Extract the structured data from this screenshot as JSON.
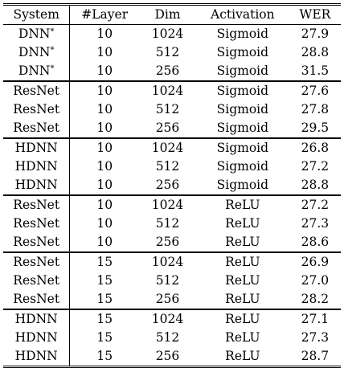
{
  "table": {
    "headers": [
      "System",
      "#Layer",
      "Dim",
      "Activation",
      "WER"
    ],
    "groups": [
      {
        "rows": [
          {
            "system": "DNN",
            "sup": "*",
            "layer": "10",
            "dim": "1024",
            "activation": "Sigmoid",
            "wer": "27.9"
          },
          {
            "system": "DNN",
            "sup": "*",
            "layer": "10",
            "dim": "512",
            "activation": "Sigmoid",
            "wer": "28.8"
          },
          {
            "system": "DNN",
            "sup": "*",
            "layer": "10",
            "dim": "256",
            "activation": "Sigmoid",
            "wer": "31.5"
          }
        ]
      },
      {
        "rows": [
          {
            "system": "ResNet",
            "sup": "",
            "layer": "10",
            "dim": "1024",
            "activation": "Sigmoid",
            "wer": "27.6"
          },
          {
            "system": "ResNet",
            "sup": "",
            "layer": "10",
            "dim": "512",
            "activation": "Sigmoid",
            "wer": "27.8"
          },
          {
            "system": "ResNet",
            "sup": "",
            "layer": "10",
            "dim": "256",
            "activation": "Sigmoid",
            "wer": "29.5"
          }
        ]
      },
      {
        "rows": [
          {
            "system": "HDNN",
            "sup": "",
            "layer": "10",
            "dim": "1024",
            "activation": "Sigmoid",
            "wer": "26.8"
          },
          {
            "system": "HDNN",
            "sup": "",
            "layer": "10",
            "dim": "512",
            "activation": "Sigmoid",
            "wer": "27.2"
          },
          {
            "system": "HDNN",
            "sup": "",
            "layer": "10",
            "dim": "256",
            "activation": "Sigmoid",
            "wer": "28.8"
          }
        ]
      },
      {
        "rows": [
          {
            "system": "ResNet",
            "sup": "",
            "layer": "10",
            "dim": "1024",
            "activation": "ReLU",
            "wer": "27.2"
          },
          {
            "system": "ResNet",
            "sup": "",
            "layer": "10",
            "dim": "512",
            "activation": "ReLU",
            "wer": "27.3"
          },
          {
            "system": "ResNet",
            "sup": "",
            "layer": "10",
            "dim": "256",
            "activation": "ReLU",
            "wer": "28.6"
          }
        ]
      },
      {
        "rows": [
          {
            "system": "ResNet",
            "sup": "",
            "layer": "15",
            "dim": "1024",
            "activation": "ReLU",
            "wer": "26.9"
          },
          {
            "system": "ResNet",
            "sup": "",
            "layer": "15",
            "dim": "512",
            "activation": "ReLU",
            "wer": "27.0"
          },
          {
            "system": "ResNet",
            "sup": "",
            "layer": "15",
            "dim": "256",
            "activation": "ReLU",
            "wer": "28.2"
          }
        ]
      },
      {
        "rows": [
          {
            "system": "HDNN",
            "sup": "",
            "layer": "15",
            "dim": "1024",
            "activation": "ReLU",
            "wer": "27.1"
          },
          {
            "system": "HDNN",
            "sup": "",
            "layer": "15",
            "dim": "512",
            "activation": "ReLU",
            "wer": "27.3"
          },
          {
            "system": "HDNN",
            "sup": "",
            "layer": "15",
            "dim": "256",
            "activation": "ReLU",
            "wer": "28.7"
          }
        ]
      }
    ]
  }
}
